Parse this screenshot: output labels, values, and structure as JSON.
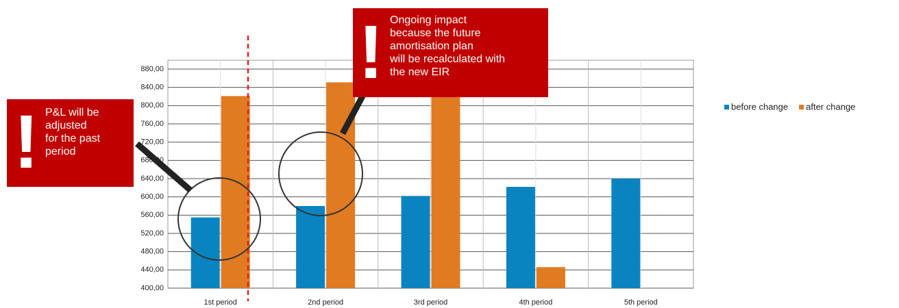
{
  "chart_data": {
    "type": "bar",
    "categories": [
      "1st period",
      "2nd period",
      "3rd period",
      "4th period",
      "5th period"
    ],
    "series": [
      {
        "name": "before change",
        "color": "#0a84c0",
        "values": [
          555,
          580,
          602,
          622,
          640
        ]
      },
      {
        "name": "after change",
        "color": "#e07b22",
        "values": [
          821,
          851,
          860,
          446,
          null
        ]
      }
    ],
    "ylim": [
      400,
      880
    ],
    "yticks": [
      {
        "value": 400,
        "label": "400,00"
      },
      {
        "value": 440,
        "label": "440,00"
      },
      {
        "value": 480,
        "label": "480,00"
      },
      {
        "value": 520,
        "label": "520,00"
      },
      {
        "value": 560,
        "label": "560,00"
      },
      {
        "value": 600,
        "label": "600,00"
      },
      {
        "value": 640,
        "label": "640,00"
      },
      {
        "value": 680,
        "label": "680,00"
      },
      {
        "value": 720,
        "label": "720,00"
      },
      {
        "value": 760,
        "label": "760,00"
      },
      {
        "value": 800,
        "label": "800,00"
      },
      {
        "value": 840,
        "label": "840,00"
      },
      {
        "value": 880,
        "label": "880,00"
      }
    ],
    "grid": true,
    "legend": "right",
    "annotations": [
      {
        "mark": "!",
        "lines": [
          "P&L will be",
          "adjusted",
          "for the past",
          "period"
        ]
      },
      {
        "mark": "!",
        "lines": [
          "Ongoing impact",
          "because the future",
          "amortisation plan",
          "will be recalculated with",
          "the new EIR"
        ]
      }
    ]
  }
}
